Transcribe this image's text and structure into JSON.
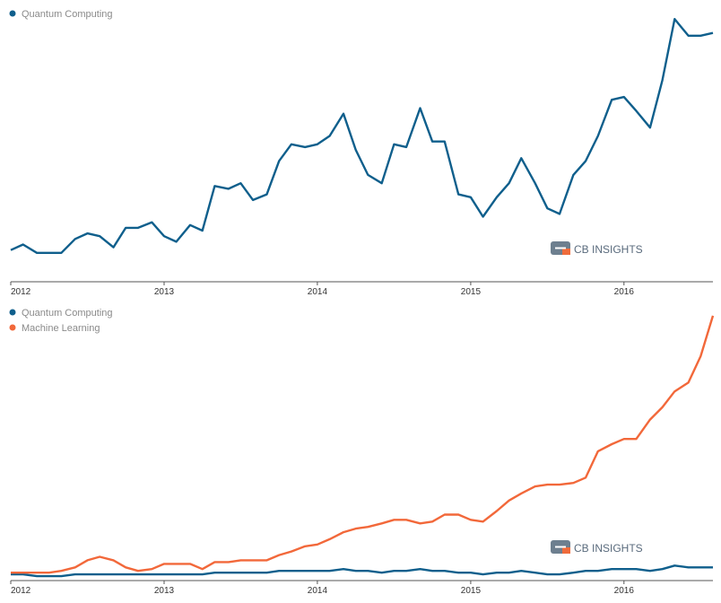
{
  "colors": {
    "quantum": "#0f5f8c",
    "ml": "#f2683a",
    "axis": "#555555",
    "logo_gray": "#6d7f8f",
    "logo_orange": "#ef6b3b"
  },
  "watermark": {
    "cb": "CB",
    "insights": "INSIGHTS"
  },
  "chart_data": [
    {
      "type": "line",
      "x": [
        2012.0,
        2012.08,
        2012.17,
        2012.25,
        2012.33,
        2012.42,
        2012.5,
        2012.58,
        2012.67,
        2012.75,
        2012.83,
        2012.92,
        2013.0,
        2013.08,
        2013.17,
        2013.25,
        2013.33,
        2013.42,
        2013.5,
        2013.58,
        2013.67,
        2013.75,
        2013.83,
        2013.92,
        2014.0,
        2014.08,
        2014.17,
        2014.25,
        2014.33,
        2014.42,
        2014.5,
        2014.58,
        2014.67,
        2014.75,
        2014.83,
        2014.92,
        2015.0,
        2015.08,
        2015.17,
        2015.25,
        2015.33,
        2015.42,
        2015.5,
        2015.58,
        2015.67,
        2015.75,
        2015.83,
        2015.92,
        2016.0,
        2016.08,
        2016.17,
        2016.25,
        2016.33,
        2016.42,
        2016.5,
        2016.58
      ],
      "series": [
        {
          "name": "Quantum Computing",
          "values": [
            1,
            3,
            0,
            0,
            0,
            5,
            7,
            6,
            2,
            9,
            9,
            11,
            6,
            4,
            10,
            8,
            24,
            23,
            25,
            19,
            21,
            33,
            39,
            38,
            39,
            42,
            50,
            37,
            28,
            25,
            39,
            38,
            52,
            40,
            40,
            21,
            20,
            13,
            20,
            25,
            34,
            25,
            16,
            14,
            28,
            33,
            42,
            55,
            56,
            51,
            45,
            62,
            84,
            78,
            78,
            79
          ]
        }
      ],
      "xticks": [
        "2012",
        "2013",
        "2014",
        "2015",
        "2016"
      ],
      "xlim": [
        2012.0,
        2016.58
      ],
      "ylim": [
        -2,
        86
      ],
      "grid": false,
      "legend": "top-left"
    },
    {
      "type": "line",
      "x": [
        2012.0,
        2012.08,
        2012.17,
        2012.25,
        2012.33,
        2012.42,
        2012.5,
        2012.58,
        2012.67,
        2012.75,
        2012.83,
        2012.92,
        2013.0,
        2013.08,
        2013.17,
        2013.25,
        2013.33,
        2013.42,
        2013.5,
        2013.58,
        2013.67,
        2013.75,
        2013.83,
        2013.92,
        2014.0,
        2014.08,
        2014.17,
        2014.25,
        2014.33,
        2014.42,
        2014.5,
        2014.58,
        2014.67,
        2014.75,
        2014.83,
        2014.92,
        2015.0,
        2015.08,
        2015.17,
        2015.25,
        2015.33,
        2015.42,
        2015.5,
        2015.58,
        2015.67,
        2015.75,
        2015.83,
        2015.92,
        2016.0,
        2016.08,
        2016.17,
        2016.25,
        2016.33,
        2016.42,
        2016.5,
        2016.58
      ],
      "series": [
        {
          "name": "Quantum Computing",
          "values": [
            1,
            1,
            0,
            0,
            0,
            1,
            1,
            1,
            1,
            1,
            1,
            1,
            1,
            1,
            1,
            1,
            2,
            2,
            2,
            2,
            2,
            3,
            3,
            3,
            3,
            3,
            4,
            3,
            3,
            2,
            3,
            3,
            4,
            3,
            3,
            2,
            2,
            1,
            2,
            2,
            3,
            2,
            1,
            1,
            2,
            3,
            3,
            4,
            4,
            4,
            3,
            4,
            6,
            5,
            5,
            5
          ]
        },
        {
          "name": "Machine Learning",
          "values": [
            2,
            2,
            2,
            2,
            3,
            5,
            9,
            11,
            9,
            5,
            3,
            4,
            7,
            7,
            7,
            4,
            8,
            8,
            9,
            9,
            9,
            12,
            14,
            17,
            18,
            21,
            25,
            27,
            28,
            30,
            32,
            32,
            30,
            31,
            35,
            35,
            32,
            31,
            37,
            43,
            47,
            51,
            52,
            52,
            53,
            56,
            71,
            75,
            78,
            78,
            89,
            96,
            105,
            110,
            125,
            148
          ]
        }
      ],
      "xticks": [
        "2012",
        "2013",
        "2014",
        "2015",
        "2016"
      ],
      "xlim": [
        2012.0,
        2016.58
      ],
      "ylim": [
        -2,
        150
      ],
      "grid": false,
      "legend": "top-left"
    }
  ]
}
